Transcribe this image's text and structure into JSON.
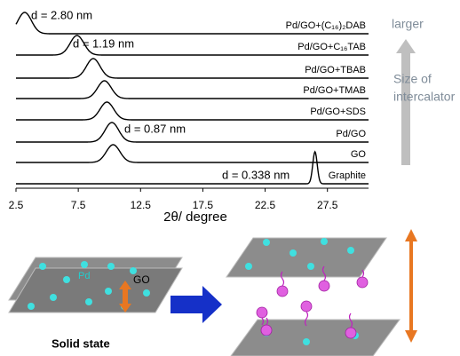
{
  "chart_data": {
    "type": "line",
    "xlabel": "2θ/ degree",
    "color": "#000000",
    "xlim": [
      2.5,
      30.8
    ],
    "xticks": [
      2.5,
      7.5,
      12.5,
      17.5,
      22.5,
      27.5
    ],
    "series": [
      {
        "name": "Pd/GO+(C₁₆)₂DAB",
        "peak": 3.2,
        "annotation": "d = 2.80 nm"
      },
      {
        "name": "Pd/GO+C₁₆TAB",
        "peak": 7.4,
        "annotation": "d = 1.19 nm"
      },
      {
        "name": "Pd/GO+TBAB",
        "peak": 8.7
      },
      {
        "name": "Pd/GO+TMAB",
        "peak": 9.6
      },
      {
        "name": "Pd/GO+SDS",
        "peak": 9.8
      },
      {
        "name": "Pd/GO",
        "peak": 10.2,
        "annotation": "d = 0.87 nm"
      },
      {
        "name": "GO",
        "peak": 10.3
      },
      {
        "name": "Graphite",
        "peak": 26.5,
        "annotation": "d = 0.338 nm"
      }
    ]
  },
  "side": {
    "top_label": "larger",
    "arrow_label": [
      "Size of",
      "intercalator"
    ]
  },
  "schematic": {
    "pd_label": "Pd",
    "go_label": "GO",
    "state_label": "Solid state"
  }
}
